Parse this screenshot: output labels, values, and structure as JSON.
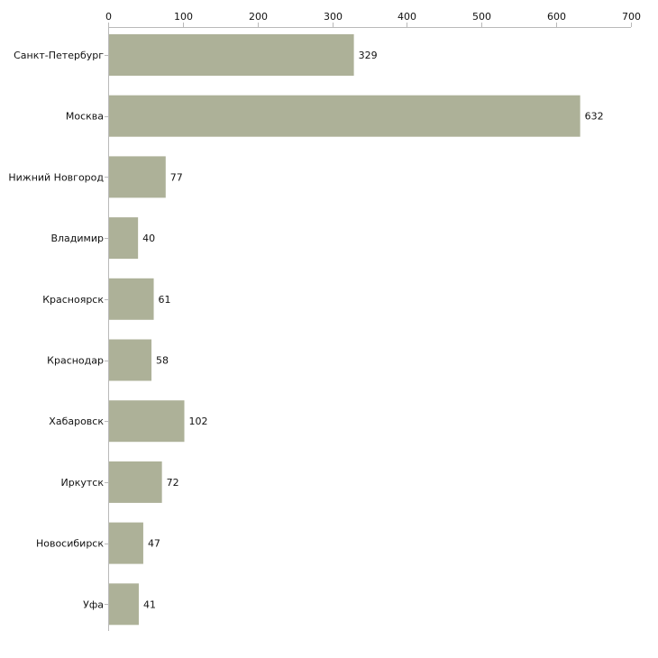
{
  "chart_data": {
    "type": "bar",
    "orientation": "horizontal",
    "title": "",
    "xlabel": "",
    "ylabel": "",
    "categories": [
      "Санкт-Петербург",
      "Москва",
      "Нижний Новгород",
      "Владимир",
      "Красноярск",
      "Краснодар",
      "Хабаровск",
      "Иркутск",
      "Новосибирск",
      "Уфа"
    ],
    "values": [
      329,
      632,
      77,
      40,
      61,
      58,
      102,
      72,
      47,
      41
    ],
    "value_labels": [
      "329",
      "632",
      "77",
      "40",
      "61",
      "58",
      "102",
      "72",
      "47",
      "41"
    ],
    "xlim": [
      0,
      700
    ],
    "xticks": [
      0,
      100,
      200,
      300,
      400,
      500,
      600,
      700
    ],
    "xtick_labels": [
      "0",
      "100",
      "200",
      "300",
      "400",
      "500",
      "600",
      "700"
    ],
    "axis_position": "top",
    "grid": false,
    "legend": "none",
    "bar_color": "#adb198"
  }
}
